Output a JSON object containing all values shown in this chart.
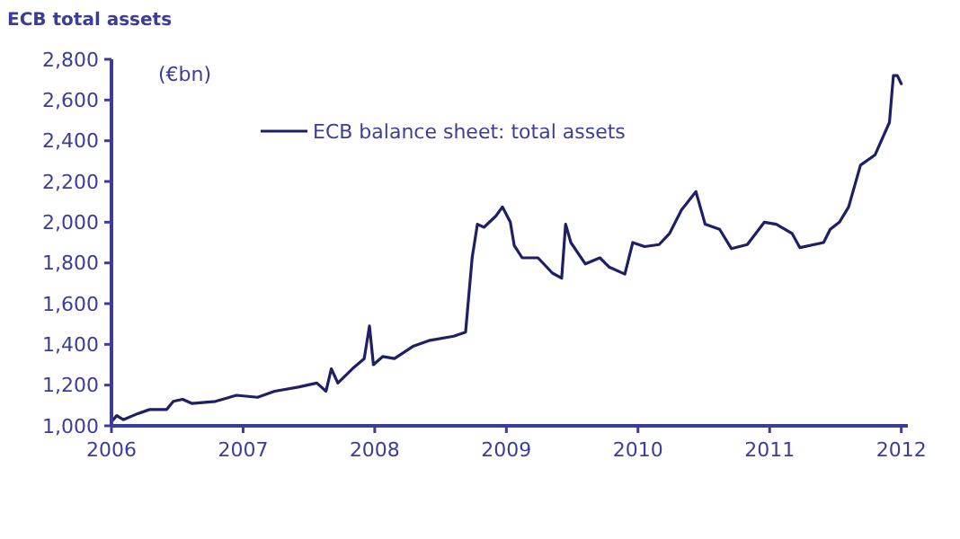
{
  "chart_data": {
    "type": "line",
    "title": "ECB total assets",
    "annotations": [
      "(€bn)"
    ],
    "x": [
      2006.0,
      2006.04,
      2006.09,
      2006.2,
      2006.29,
      2006.42,
      2006.47,
      2006.54,
      2006.61,
      2006.79,
      2006.95,
      2007.11,
      2007.24,
      2007.42,
      2007.56,
      2007.63,
      2007.67,
      2007.72,
      2007.83,
      2007.92,
      2007.96,
      2007.99,
      2008.06,
      2008.15,
      2008.29,
      2008.42,
      2008.6,
      2008.69,
      2008.74,
      2008.78,
      2008.83,
      2008.92,
      2008.97,
      2009.03,
      2009.06,
      2009.12,
      2009.24,
      2009.35,
      2009.42,
      2009.45,
      2009.49,
      2009.6,
      2009.71,
      2009.78,
      2009.9,
      2009.96,
      2010.05,
      2010.16,
      2010.24,
      2010.33,
      2010.44,
      2010.51,
      2010.62,
      2010.71,
      2010.83,
      2010.96,
      2011.05,
      2011.17,
      2011.23,
      2011.41,
      2011.46,
      2011.53,
      2011.6,
      2011.69,
      2011.8,
      2011.91,
      2011.94,
      2011.97,
      2012.0
    ],
    "series": [
      {
        "name": "ECB balance sheet: total assets",
        "color": "#1f1f66",
        "values": [
          1020,
          1050,
          1030,
          1060,
          1080,
          1080,
          1120,
          1130,
          1110,
          1120,
          1150,
          1140,
          1170,
          1190,
          1210,
          1170,
          1280,
          1210,
          1280,
          1330,
          1490,
          1300,
          1340,
          1330,
          1390,
          1420,
          1440,
          1460,
          1825,
          1990,
          1975,
          2030,
          2075,
          2000,
          1885,
          1825,
          1825,
          1750,
          1725,
          1990,
          1900,
          1795,
          1825,
          1780,
          1745,
          1900,
          1880,
          1890,
          1945,
          2060,
          2150,
          1990,
          1965,
          1870,
          1890,
          2000,
          1990,
          1945,
          1875,
          1900,
          1965,
          2000,
          2075,
          2280,
          2330,
          2490,
          2720,
          2720,
          2680
        ]
      }
    ],
    "xlim": [
      2006,
      2012.05
    ],
    "xticks": [
      2006,
      2007,
      2008,
      2009,
      2010,
      2011,
      2012
    ],
    "ylim": [
      1000,
      2800
    ],
    "yticks": [
      {
        "value": 1000,
        "label": "1,000"
      },
      {
        "value": 1200,
        "label": "1,200"
      },
      {
        "value": 1400,
        "label": "1,400"
      },
      {
        "value": 1600,
        "label": "1,600"
      },
      {
        "value": 1800,
        "label": "1,800"
      },
      {
        "value": 2000,
        "label": "2,000"
      },
      {
        "value": 2200,
        "label": "2,200"
      },
      {
        "value": 2400,
        "label": "2,400"
      },
      {
        "value": 2600,
        "label": "2,600"
      },
      {
        "value": 2800,
        "label": "2,800"
      }
    ],
    "grid": false,
    "legend": "top"
  }
}
